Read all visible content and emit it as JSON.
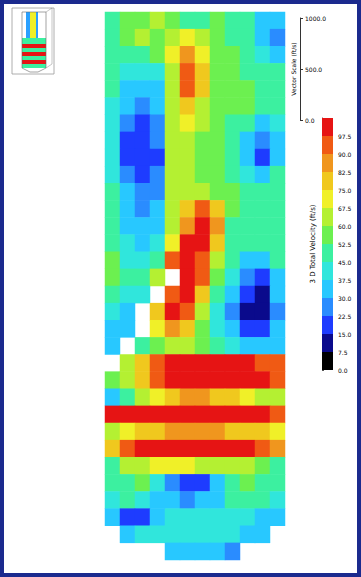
{
  "chart_data": {
    "type": "heatmap",
    "tick_labels": false,
    "cells": [
      [
        52,
        55,
        58,
        60,
        55,
        50,
        52,
        55,
        50,
        45,
        35,
        30
      ],
      [
        50,
        55,
        60,
        58,
        62,
        70,
        60,
        55,
        52,
        45,
        30,
        28
      ],
      [
        48,
        50,
        52,
        55,
        70,
        85,
        70,
        55,
        55,
        50,
        40,
        35
      ],
      [
        45,
        40,
        38,
        40,
        65,
        95,
        80,
        58,
        55,
        52,
        50,
        45
      ],
      [
        45,
        35,
        30,
        35,
        60,
        90,
        75,
        58,
        55,
        55,
        52,
        50
      ],
      [
        42,
        30,
        28,
        30,
        60,
        80,
        65,
        58,
        55,
        55,
        52,
        50
      ],
      [
        40,
        25,
        22,
        28,
        62,
        70,
        60,
        55,
        52,
        45,
        35,
        40
      ],
      [
        40,
        22,
        20,
        25,
        60,
        65,
        58,
        55,
        48,
        35,
        25,
        30
      ],
      [
        40,
        20,
        18,
        22,
        60,
        62,
        58,
        55,
        45,
        30,
        22,
        32
      ],
      [
        42,
        25,
        22,
        25,
        62,
        60,
        58,
        55,
        50,
        40,
        35,
        45
      ],
      [
        45,
        30,
        25,
        28,
        65,
        65,
        60,
        58,
        55,
        50,
        48,
        50
      ],
      [
        48,
        32,
        28,
        30,
        60,
        75,
        92,
        75,
        55,
        52,
        50,
        52
      ],
      [
        50,
        35,
        30,
        35,
        62,
        85,
        100,
        85,
        52,
        50,
        48,
        50
      ],
      [
        52,
        38,
        35,
        40,
        70,
        100,
        100,
        80,
        50,
        45,
        45,
        48
      ],
      [
        55,
        42,
        40,
        50,
        90,
        100,
        95,
        65,
        45,
        35,
        35,
        45
      ],
      [
        55,
        45,
        45,
        60,
        null,
        100,
        90,
        55,
        38,
        25,
        20,
        35
      ],
      [
        50,
        40,
        40,
        null,
        95,
        100,
        80,
        45,
        30,
        15,
        12,
        30
      ],
      [
        40,
        35,
        null,
        80,
        100,
        95,
        65,
        40,
        28,
        12,
        10,
        28
      ],
      [
        35,
        30,
        null,
        70,
        85,
        75,
        55,
        40,
        30,
        20,
        15,
        30
      ],
      [
        35,
        null,
        45,
        55,
        65,
        62,
        55,
        45,
        40,
        35,
        30,
        35
      ],
      [
        null,
        60,
        78,
        95,
        100,
        100,
        100,
        100,
        100,
        100,
        95,
        90
      ],
      [
        55,
        65,
        80,
        95,
        100,
        100,
        100,
        100,
        100,
        100,
        98,
        90
      ],
      [
        35,
        45,
        60,
        70,
        80,
        85,
        85,
        80,
        75,
        70,
        65,
        60
      ],
      [
        100,
        100,
        100,
        100,
        100,
        100,
        100,
        100,
        100,
        100,
        98,
        95
      ],
      [
        65,
        70,
        75,
        80,
        85,
        85,
        85,
        85,
        80,
        80,
        75,
        70
      ],
      [
        80,
        95,
        100,
        100,
        100,
        100,
        100,
        100,
        100,
        100,
        95,
        85
      ],
      [
        50,
        60,
        65,
        70,
        70,
        68,
        65,
        65,
        62,
        60,
        55,
        50
      ],
      [
        45,
        50,
        55,
        40,
        25,
        20,
        22,
        30,
        45,
        55,
        50,
        45
      ],
      [
        40,
        45,
        42,
        35,
        30,
        28,
        30,
        35,
        45,
        50,
        45,
        40
      ],
      [
        35,
        20,
        18,
        30,
        38,
        40,
        42,
        40,
        42,
        40,
        35,
        30
      ],
      [
        null,
        35,
        38,
        40,
        42,
        42,
        40,
        38,
        38,
        35,
        30,
        null
      ],
      [
        null,
        null,
        null,
        null,
        30,
        35,
        35,
        30,
        25,
        null,
        null,
        null
      ]
    ],
    "colorbar": {
      "title": "3 D Total Velocity (ft/s)",
      "range": [
        0,
        105
      ],
      "ticks": [
        {
          "value": 0,
          "label": "0.0"
        },
        {
          "value": 7.5,
          "label": "7.5"
        },
        {
          "value": 15,
          "label": "15.0"
        },
        {
          "value": 22.5,
          "label": "22.5"
        },
        {
          "value": 30,
          "label": "30.0"
        },
        {
          "value": 37.5,
          "label": "37.5"
        },
        {
          "value": 45,
          "label": "45.0"
        },
        {
          "value": 52.5,
          "label": "52.5"
        },
        {
          "value": 60,
          "label": "60.0"
        },
        {
          "value": 67.5,
          "label": "67.5"
        },
        {
          "value": 75,
          "label": "75.0"
        },
        {
          "value": 82.5,
          "label": "82.5"
        },
        {
          "value": 90,
          "label": "90.0"
        },
        {
          "value": 97.5,
          "label": "97.5"
        }
      ]
    },
    "vector_scale": {
      "title": "Vector Scale (ft/s)",
      "range": [
        0,
        1000
      ],
      "ticks": [
        {
          "value": 0,
          "label": "0.0"
        },
        {
          "value": 500,
          "label": "500.0"
        },
        {
          "value": 1000,
          "label": "1000.0"
        }
      ]
    }
  }
}
